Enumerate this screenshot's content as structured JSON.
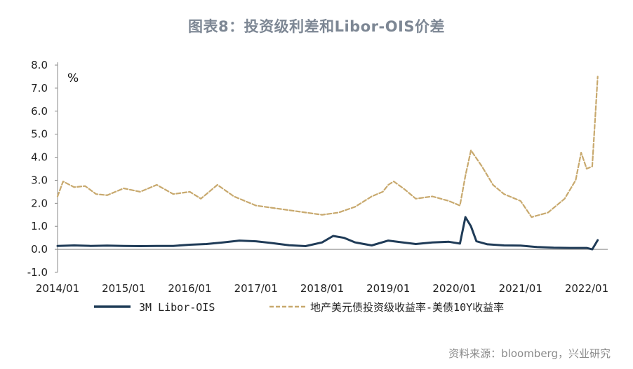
{
  "title": "图表8：投资级利差和Libor-OIS价差",
  "source": "资料来源：bloomberg，兴业研究",
  "chart_data": {
    "type": "line",
    "title": "图表8：投资级利差和Libor-OIS价差",
    "ylabel": "%",
    "xlabel": "",
    "ylim": [
      -1.0,
      8.0
    ],
    "y_ticks": [
      "8.0",
      "7.0",
      "6.0",
      "5.0",
      "4.0",
      "3.0",
      "2.0",
      "1.0",
      "0.0",
      "-1.0"
    ],
    "x_ticks": [
      "2014/01",
      "2015/01",
      "2016/01",
      "2017/01",
      "2018/01",
      "2019/01",
      "2020/01",
      "2021/01",
      "2022/01"
    ],
    "x_range": [
      "2014-01",
      "2022-03"
    ],
    "grid": false,
    "legend_position": "bottom",
    "series": [
      {
        "name": "3M Libor-OIS",
        "color": "#1f3b57",
        "style": "solid",
        "points": [
          [
            "2014-01",
            0.15
          ],
          [
            "2014-04",
            0.17
          ],
          [
            "2014-07",
            0.15
          ],
          [
            "2014-10",
            0.16
          ],
          [
            "2015-01",
            0.15
          ],
          [
            "2015-04",
            0.14
          ],
          [
            "2015-07",
            0.15
          ],
          [
            "2015-10",
            0.15
          ],
          [
            "2016-01",
            0.2
          ],
          [
            "2016-04",
            0.23
          ],
          [
            "2016-07",
            0.3
          ],
          [
            "2016-10",
            0.38
          ],
          [
            "2017-01",
            0.35
          ],
          [
            "2017-04",
            0.27
          ],
          [
            "2017-07",
            0.18
          ],
          [
            "2017-10",
            0.14
          ],
          [
            "2018-01",
            0.3
          ],
          [
            "2018-03",
            0.58
          ],
          [
            "2018-05",
            0.5
          ],
          [
            "2018-07",
            0.3
          ],
          [
            "2018-10",
            0.17
          ],
          [
            "2019-01",
            0.38
          ],
          [
            "2019-03",
            0.32
          ],
          [
            "2019-06",
            0.23
          ],
          [
            "2019-09",
            0.3
          ],
          [
            "2019-12",
            0.33
          ],
          [
            "2020-02",
            0.25
          ],
          [
            "2020-03",
            1.4
          ],
          [
            "2020-04",
            1.0
          ],
          [
            "2020-05",
            0.35
          ],
          [
            "2020-07",
            0.22
          ],
          [
            "2020-10",
            0.17
          ],
          [
            "2021-01",
            0.16
          ],
          [
            "2021-04",
            0.1
          ],
          [
            "2021-07",
            0.07
          ],
          [
            "2021-10",
            0.06
          ],
          [
            "2022-01",
            0.06
          ],
          [
            "2022-02",
            0.0
          ],
          [
            "2022-03",
            0.4
          ]
        ]
      },
      {
        "name": "地产美元债投资级收益率-美债10Y收益率",
        "color": "#c8a96e",
        "style": "dashed",
        "points": [
          [
            "2014-01",
            2.3
          ],
          [
            "2014-02",
            2.95
          ],
          [
            "2014-04",
            2.7
          ],
          [
            "2014-06",
            2.75
          ],
          [
            "2014-08",
            2.4
          ],
          [
            "2014-10",
            2.35
          ],
          [
            "2015-01",
            2.65
          ],
          [
            "2015-04",
            2.5
          ],
          [
            "2015-07",
            2.8
          ],
          [
            "2015-10",
            2.4
          ],
          [
            "2016-01",
            2.5
          ],
          [
            "2016-03",
            2.2
          ],
          [
            "2016-06",
            2.8
          ],
          [
            "2016-09",
            2.3
          ],
          [
            "2016-12",
            2.0
          ],
          [
            "2017-01",
            1.9
          ],
          [
            "2017-04",
            1.8
          ],
          [
            "2017-07",
            1.7
          ],
          [
            "2017-10",
            1.6
          ],
          [
            "2018-01",
            1.5
          ],
          [
            "2018-04",
            1.6
          ],
          [
            "2018-07",
            1.85
          ],
          [
            "2018-10",
            2.3
          ],
          [
            "2018-12",
            2.5
          ],
          [
            "2019-01",
            2.8
          ],
          [
            "2019-02",
            2.95
          ],
          [
            "2019-04",
            2.6
          ],
          [
            "2019-06",
            2.2
          ],
          [
            "2019-09",
            2.3
          ],
          [
            "2019-12",
            2.1
          ],
          [
            "2020-02",
            1.9
          ],
          [
            "2020-03",
            3.2
          ],
          [
            "2020-04",
            4.3
          ],
          [
            "2020-06",
            3.6
          ],
          [
            "2020-08",
            2.8
          ],
          [
            "2020-10",
            2.4
          ],
          [
            "2021-01",
            2.1
          ],
          [
            "2021-03",
            1.4
          ],
          [
            "2021-06",
            1.6
          ],
          [
            "2021-09",
            2.2
          ],
          [
            "2021-11",
            3.0
          ],
          [
            "2021-12",
            4.2
          ],
          [
            "2022-01",
            3.5
          ],
          [
            "2022-02",
            3.6
          ],
          [
            "2022-03",
            7.5
          ]
        ]
      }
    ]
  }
}
